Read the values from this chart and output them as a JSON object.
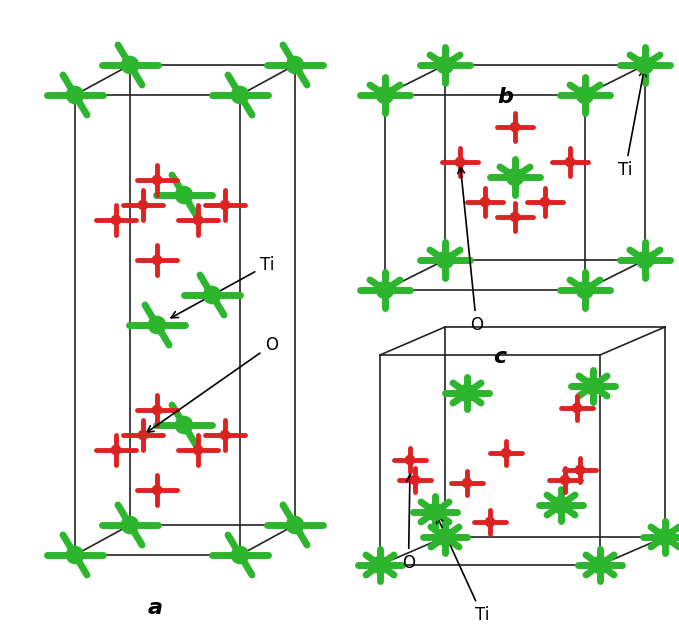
{
  "title": "",
  "background_color": "#ffffff",
  "ti_color": "#2db52d",
  "o_color": "#dd2222",
  "ti_size": 180,
  "o_size": 80,
  "bond_color_ti": "#2db52d",
  "bond_color_o": "#dd2222",
  "cell_color": "#222222",
  "label_a": "a",
  "label_b": "b",
  "label_c": "c",
  "label_ti": "Ti",
  "label_o": "O",
  "fig_width": 6.79,
  "fig_height": 6.43
}
